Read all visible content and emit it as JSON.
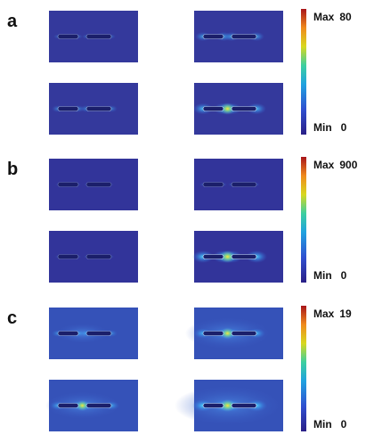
{
  "panels": [
    {
      "label": "a",
      "max_label": "Max",
      "max_value": 80,
      "min_label": "Min",
      "min_value": 0
    },
    {
      "label": "b",
      "max_label": "Max",
      "max_value": 900,
      "min_label": "Min",
      "min_value": 0
    },
    {
      "label": "c",
      "max_label": "Max",
      "max_value": 19,
      "min_label": "Min",
      "min_value": 0
    }
  ]
}
